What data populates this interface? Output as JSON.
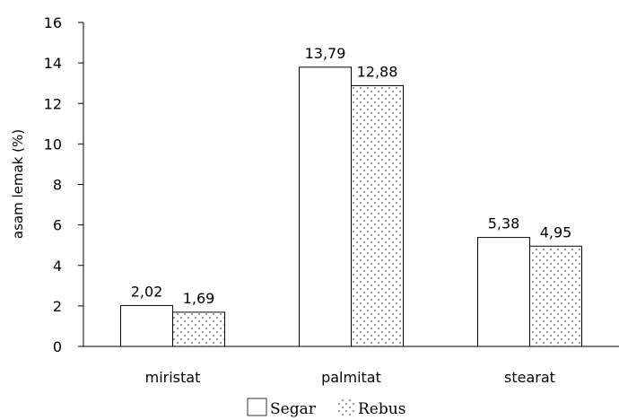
{
  "chart_data": {
    "type": "bar",
    "title": "",
    "xlabel": "",
    "ylabel": "asam lemak (%)",
    "ylim": [
      0,
      16
    ],
    "yticks": [
      0,
      2,
      4,
      6,
      8,
      10,
      12,
      14,
      16
    ],
    "grid": false,
    "legend_position": "bottom",
    "categories": [
      "miristat",
      "palmitat",
      "stearat"
    ],
    "series": [
      {
        "name": "Segar",
        "values": [
          2.02,
          13.79,
          5.38
        ],
        "labels": [
          "2,02",
          "13,79",
          "5,38"
        ],
        "pattern": "solid",
        "fill": "#ffffff"
      },
      {
        "name": "Rebus",
        "values": [
          1.69,
          12.88,
          4.95
        ],
        "labels": [
          "1,69",
          "12,88",
          "4,95"
        ],
        "pattern": "dots",
        "fill": "#ffffff"
      }
    ],
    "colors": {
      "bar_stroke": "#000000",
      "axis": "#000000",
      "dots": "#555555"
    }
  }
}
